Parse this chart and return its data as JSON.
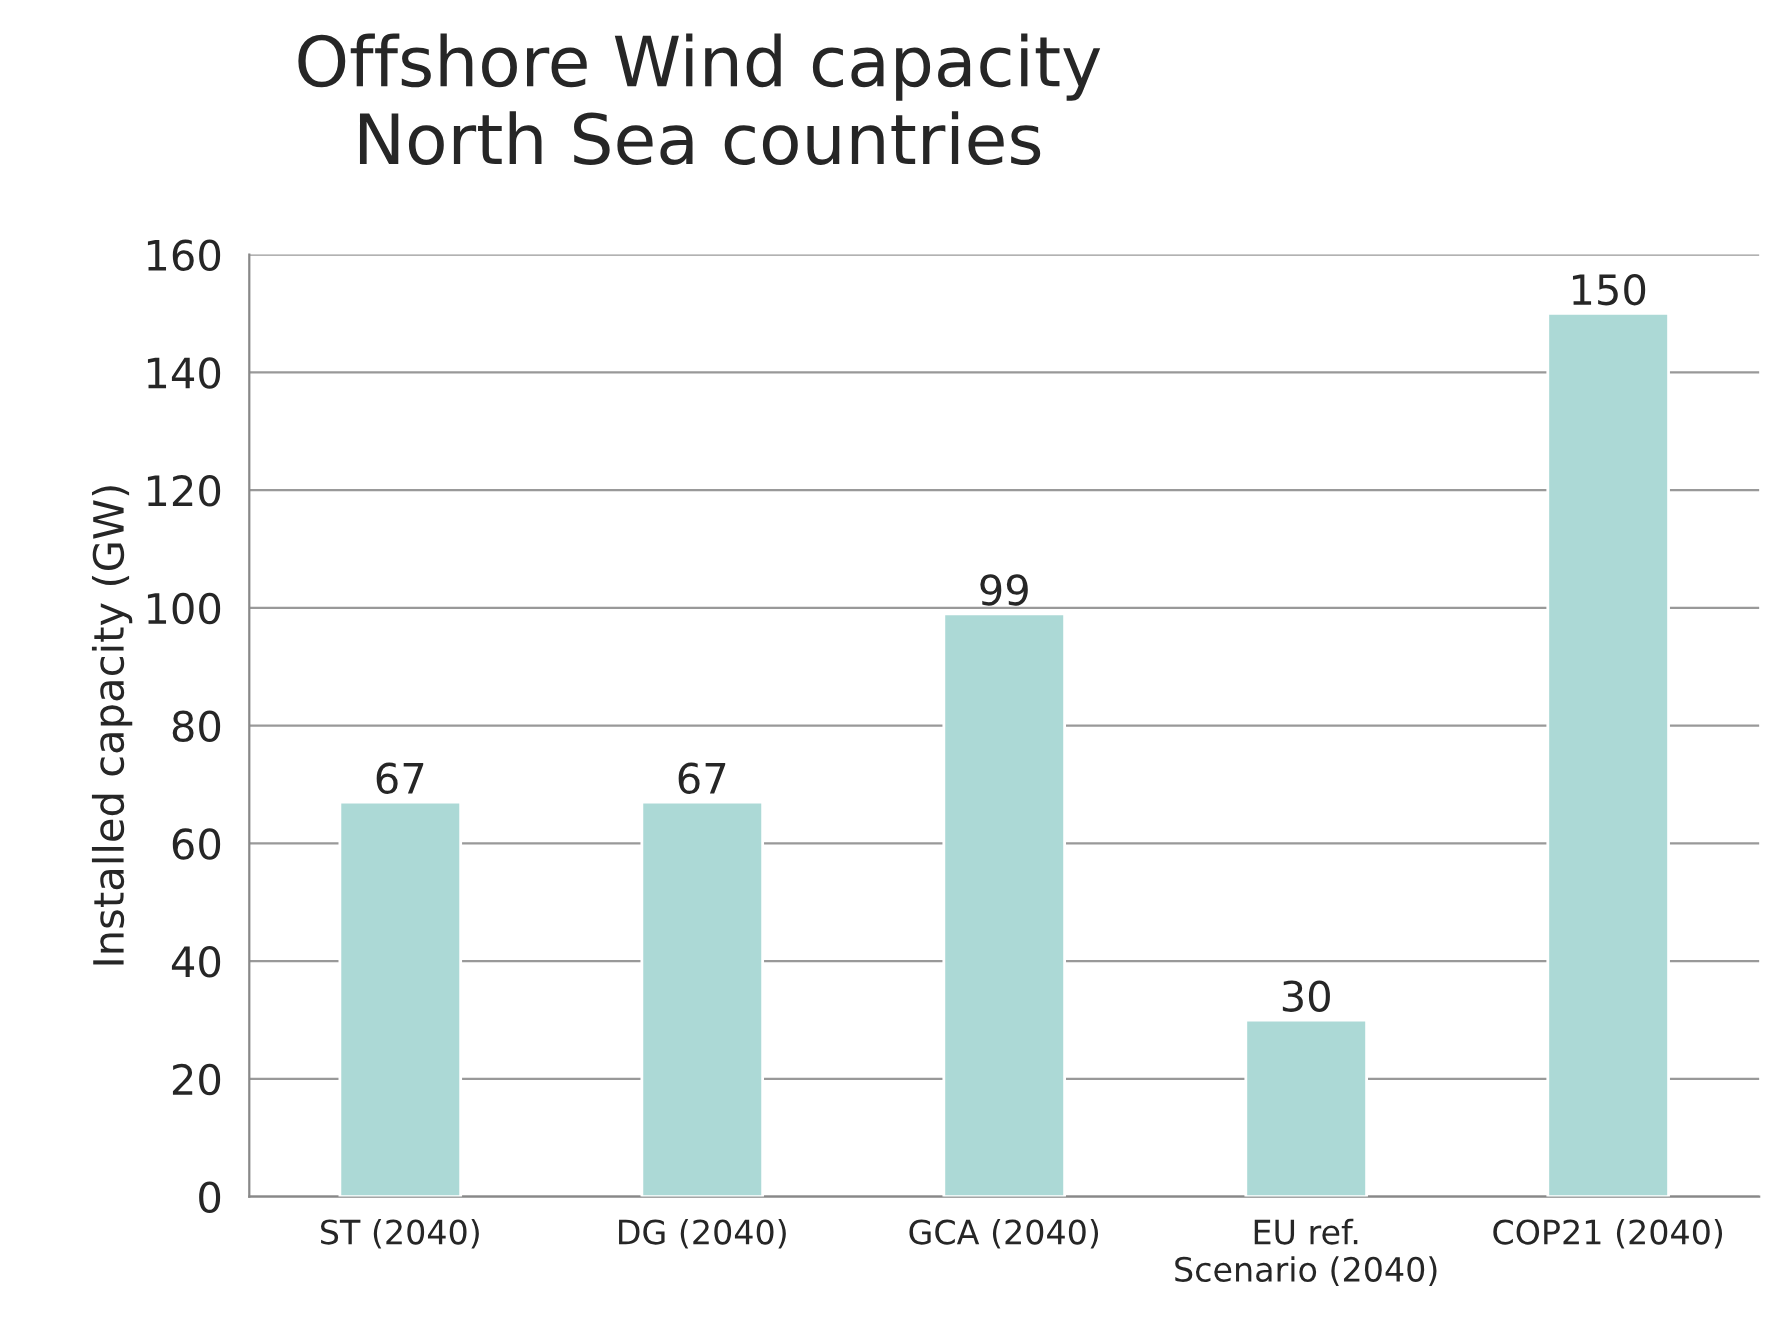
{
  "chart_data": {
    "type": "bar",
    "title": "Offshore Wind capacity\nNorth Sea countries",
    "ylabel": "Installed capacity (GW)",
    "categories": [
      "ST (2040)",
      "DG (2040)",
      "GCA (2040)",
      "EU ref.\nScenario (2040)",
      "COP21 (2040)"
    ],
    "values": [
      67,
      67,
      99,
      30,
      150
    ],
    "color": "#acd9d6",
    "ylim": [
      0,
      160
    ],
    "yticks": [
      0,
      20,
      40,
      60,
      80,
      100,
      120,
      140,
      160
    ],
    "grid": "y",
    "data_labels": true
  }
}
